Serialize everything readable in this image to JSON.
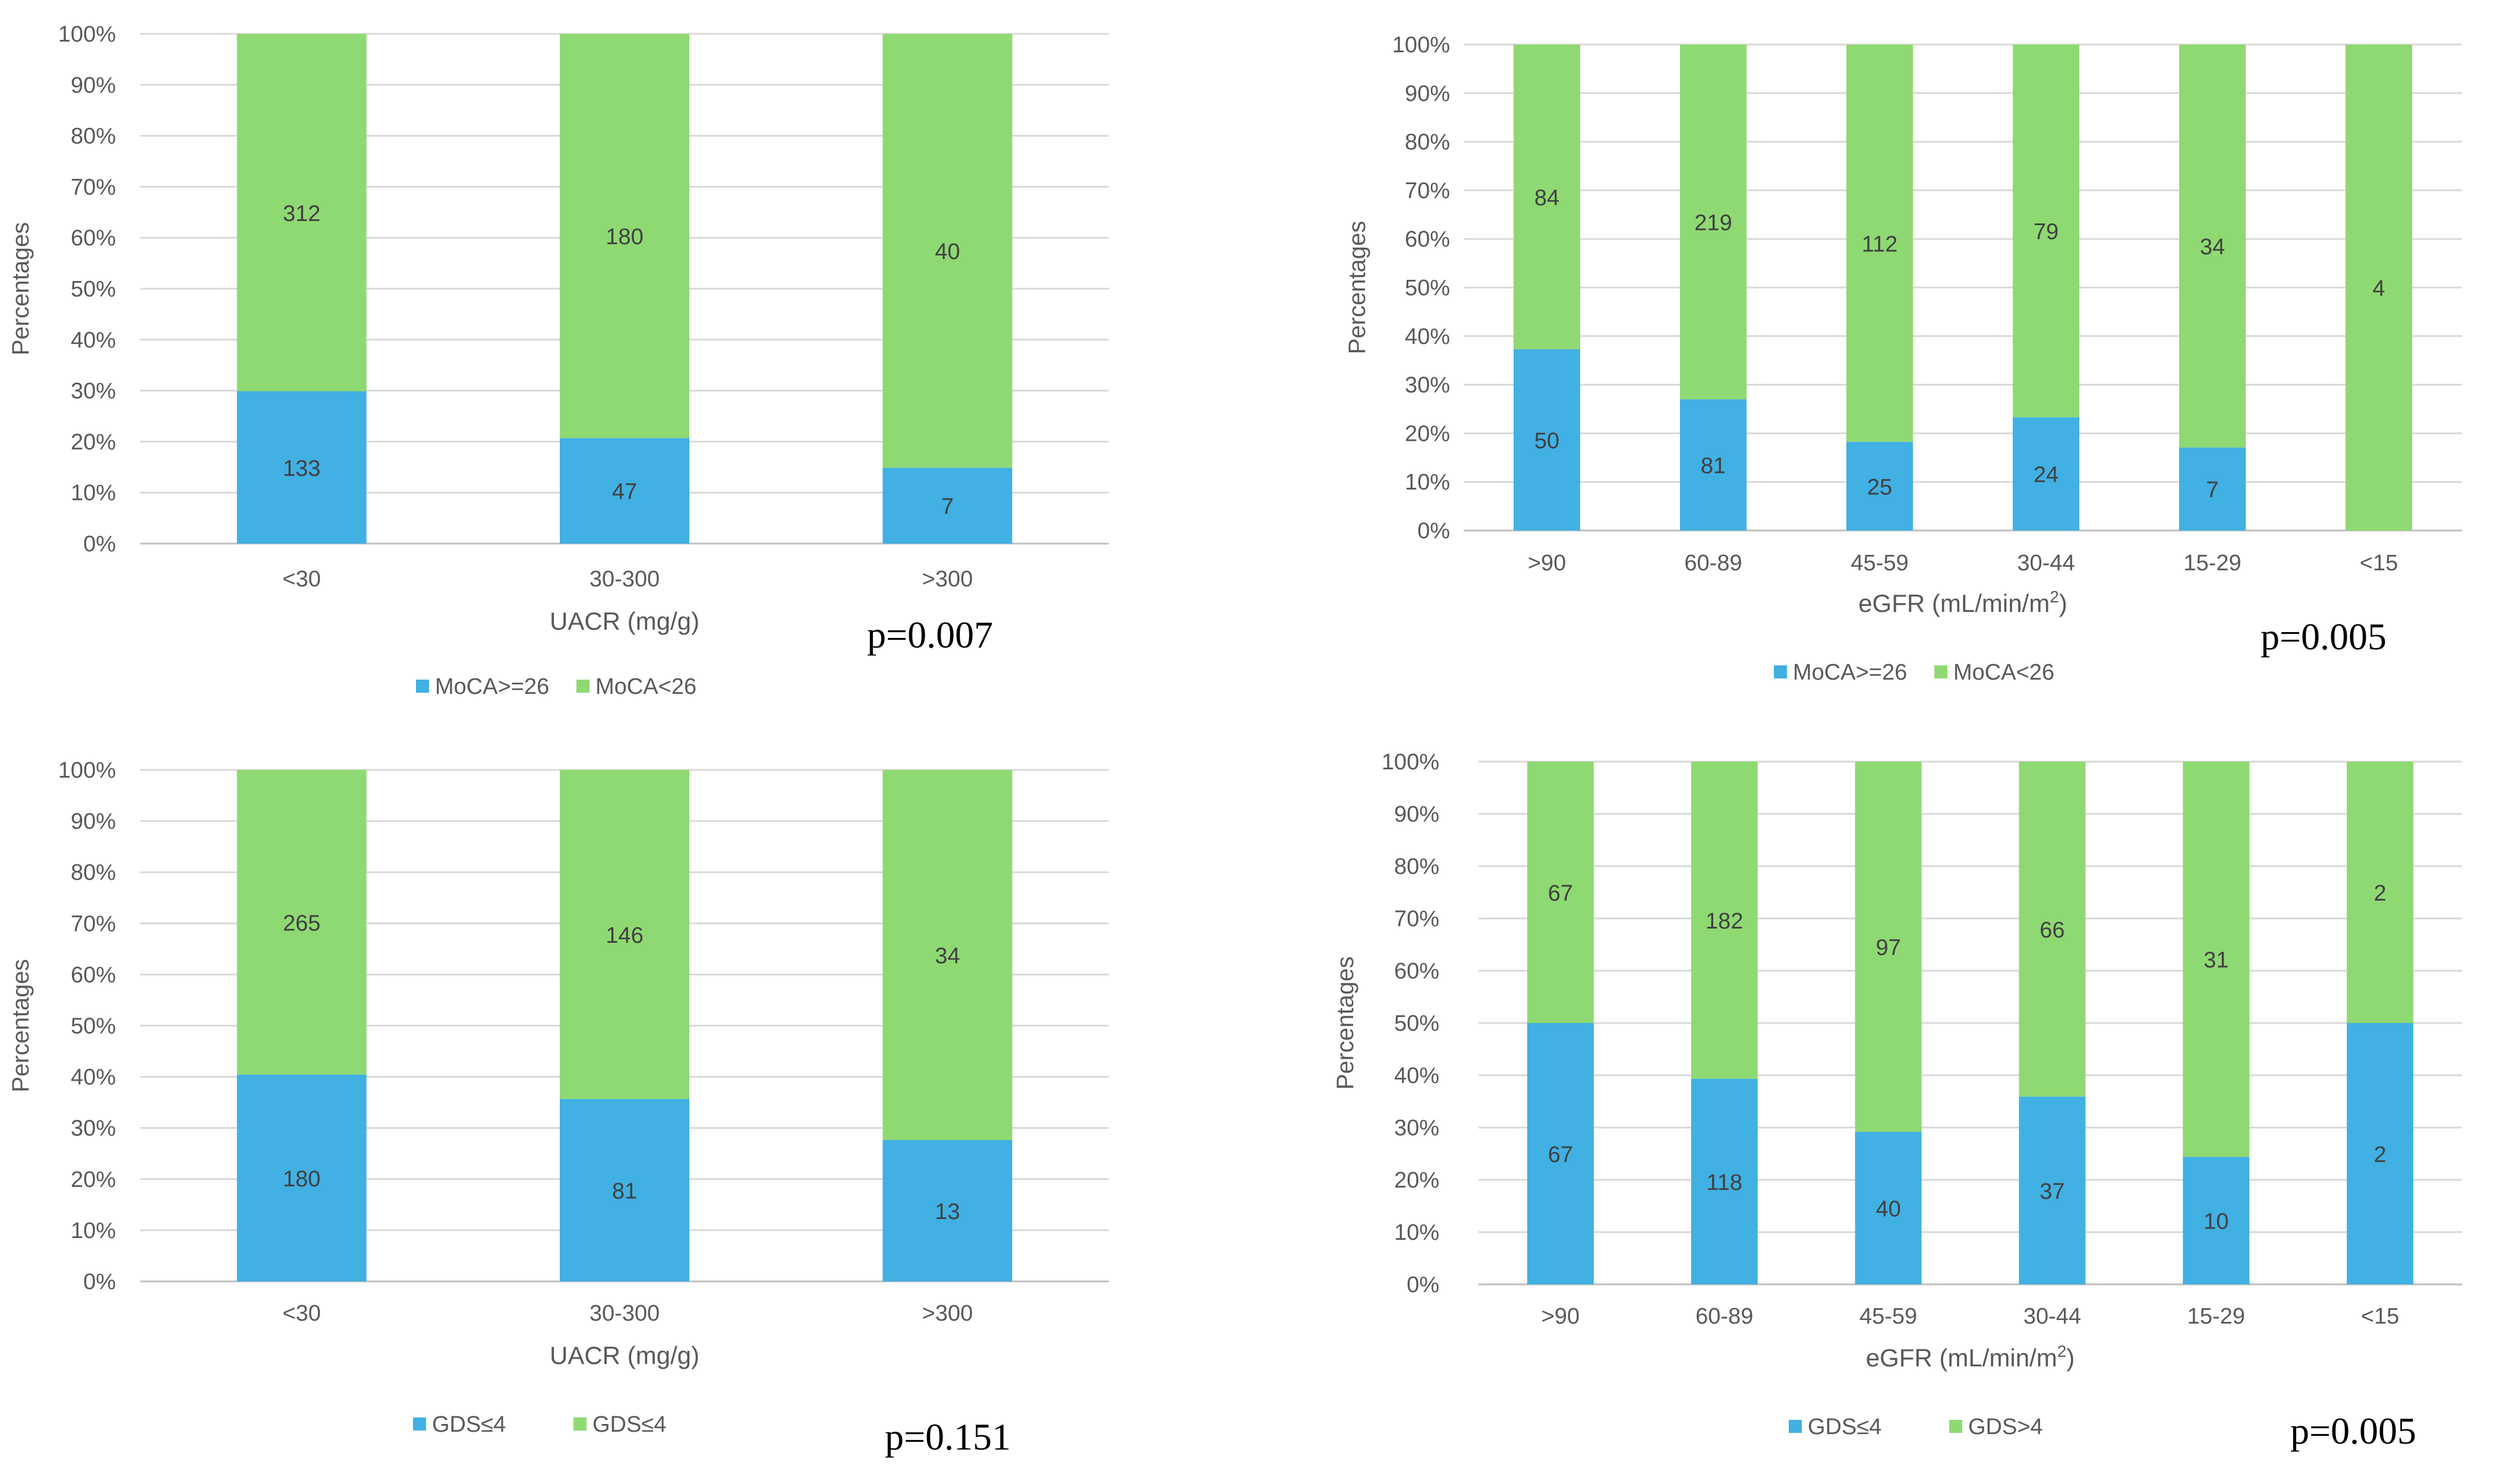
{
  "colors": {
    "blue": "#41b0e3",
    "green": "#8fd973",
    "grid": "#d9d9d9",
    "axis": "#bfbfbf",
    "text": "#595959",
    "label": "#404040",
    "pval": "#000000"
  },
  "chart_data": [
    {
      "type": "bar",
      "stacked": "percent",
      "title": "",
      "xlabel": "UACR (mg/g)",
      "ylabel": "Percentages",
      "ylim": [
        0,
        100
      ],
      "y_ticks": [
        "0%",
        "10%",
        "20%",
        "30%",
        "40%",
        "50%",
        "60%",
        "70%",
        "80%",
        "90%",
        "100%"
      ],
      "categories": [
        "<30",
        "30-300",
        ">300"
      ],
      "series": [
        {
          "name": "MoCA>=26",
          "values": [
            133,
            47,
            7
          ]
        },
        {
          "name": "MoCA<26",
          "values": [
            312,
            180,
            40
          ]
        }
      ],
      "p_value": "p=0.007",
      "legend": "bottom"
    },
    {
      "type": "bar",
      "stacked": "percent",
      "title": "",
      "xlabel": "eGFR (mL/min/m",
      "xlabel_sup": "2",
      "xlabel_end": ")",
      "ylabel": "Percentages",
      "ylim": [
        0,
        100
      ],
      "y_ticks": [
        "0%",
        "10%",
        "20%",
        "30%",
        "40%",
        "50%",
        "60%",
        "70%",
        "80%",
        "90%",
        "100%"
      ],
      "categories": [
        ">90",
        "60-89",
        "45-59",
        "30-44",
        "15-29",
        "<15"
      ],
      "series": [
        {
          "name": "MoCA>=26",
          "values": [
            50,
            81,
            25,
            24,
            7,
            0
          ]
        },
        {
          "name": "MoCA<26",
          "values": [
            84,
            219,
            112,
            79,
            34,
            4
          ]
        }
      ],
      "p_value": "p=0.005",
      "legend": "bottom"
    },
    {
      "type": "bar",
      "stacked": "percent",
      "title": "",
      "xlabel": "UACR (mg/g)",
      "ylabel": "Percentages",
      "ylim": [
        0,
        100
      ],
      "y_ticks": [
        "0%",
        "10%",
        "20%",
        "30%",
        "40%",
        "50%",
        "60%",
        "70%",
        "80%",
        "90%",
        "100%"
      ],
      "categories": [
        "<30",
        "30-300",
        ">300"
      ],
      "series": [
        {
          "name": "GDS≤4",
          "values": [
            180,
            81,
            13
          ]
        },
        {
          "name": "GDS≤4",
          "values": [
            265,
            146,
            34
          ]
        }
      ],
      "p_value": "p=0.151",
      "legend": "bottom"
    },
    {
      "type": "bar",
      "stacked": "percent",
      "title": "",
      "xlabel": "eGFR (mL/min/m",
      "xlabel_sup": "2",
      "xlabel_end": ")",
      "ylabel": "Percentages",
      "ylim": [
        0,
        100
      ],
      "y_ticks": [
        "0%",
        "10%",
        "20%",
        "30%",
        "40%",
        "50%",
        "60%",
        "70%",
        "80%",
        "90%",
        "100%"
      ],
      "categories": [
        ">90",
        "60-89",
        "45-59",
        "30-44",
        "15-29",
        "<15"
      ],
      "series": [
        {
          "name": "GDS≤4",
          "values": [
            67,
            118,
            40,
            37,
            10,
            2
          ]
        },
        {
          "name": "GDS>4",
          "values": [
            67,
            182,
            97,
            66,
            31,
            2
          ]
        }
      ],
      "p_value": "p=0.005",
      "legend": "bottom"
    }
  ]
}
